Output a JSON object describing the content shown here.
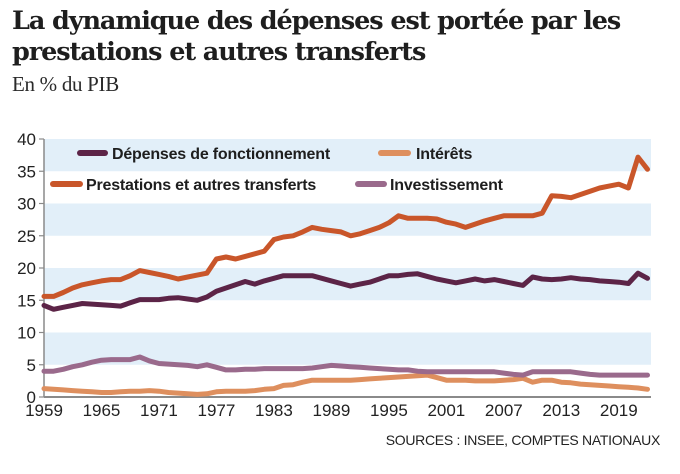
{
  "header": {
    "title": "La dynamique des dépenses est portée par les prestations et autres transferts",
    "subtitle": "En % du PIB"
  },
  "footer": {
    "source": "SOURCES : INSEE, COMPTES NATIONAUX"
  },
  "chart_data": {
    "type": "line",
    "title": "La dynamique des dépenses est portée par les prestations et autres transferts",
    "subtitle": "En % du PIB",
    "xlabel": "",
    "ylabel": "En % du PIB",
    "xlim": [
      1959,
      2022
    ],
    "ylim": [
      0,
      40
    ],
    "yticks": [
      0,
      5,
      10,
      15,
      20,
      25,
      30,
      35,
      40
    ],
    "xticks": [
      1959,
      1965,
      1971,
      1977,
      1983,
      1989,
      1995,
      2001,
      2007,
      2013,
      2019
    ],
    "grid": "alternating horizontal bands",
    "legend_position": "top",
    "colors": {
      "band": "#e2eff9",
      "axis": "#8a8a8a"
    },
    "x": [
      1959,
      1960,
      1961,
      1962,
      1963,
      1964,
      1965,
      1966,
      1967,
      1968,
      1969,
      1970,
      1971,
      1972,
      1973,
      1974,
      1975,
      1976,
      1977,
      1978,
      1979,
      1980,
      1981,
      1982,
      1983,
      1984,
      1985,
      1986,
      1987,
      1988,
      1989,
      1990,
      1991,
      1992,
      1993,
      1994,
      1995,
      1996,
      1997,
      1998,
      1999,
      2000,
      2001,
      2002,
      2003,
      2004,
      2005,
      2006,
      2007,
      2008,
      2009,
      2010,
      2011,
      2012,
      2013,
      2014,
      2015,
      2016,
      2017,
      2018,
      2019,
      2020,
      2021,
      2022
    ],
    "series": [
      {
        "name": "Dépenses de fonctionnement",
        "color": "#5c2447",
        "values": [
          14.2,
          13.6,
          13.9,
          14.2,
          14.5,
          14.4,
          14.3,
          14.2,
          14.1,
          14.6,
          15.1,
          15.1,
          15.1,
          15.3,
          15.4,
          15.2,
          15.0,
          15.5,
          16.4,
          16.9,
          17.4,
          17.9,
          17.5,
          18.0,
          18.4,
          18.8,
          18.8,
          18.8,
          18.8,
          18.4,
          18.0,
          17.6,
          17.2,
          17.5,
          17.8,
          18.3,
          18.8,
          18.8,
          19.0,
          19.1,
          18.7,
          18.3,
          18.0,
          17.7,
          18.0,
          18.3,
          18.0,
          18.2,
          17.9,
          17.6,
          17.3,
          18.6,
          18.3,
          18.2,
          18.3,
          18.5,
          18.3,
          18.2,
          18.0,
          17.9,
          17.8,
          17.6,
          19.2,
          18.4
        ]
      },
      {
        "name": "Intérêts",
        "color": "#de8f5e",
        "values": [
          1.3,
          1.2,
          1.1,
          1.0,
          0.9,
          0.8,
          0.7,
          0.7,
          0.8,
          0.9,
          0.9,
          1.0,
          0.9,
          0.7,
          0.6,
          0.5,
          0.4,
          0.5,
          0.8,
          0.9,
          0.9,
          0.9,
          1.0,
          1.2,
          1.3,
          1.8,
          1.9,
          2.3,
          2.6,
          2.6,
          2.6,
          2.6,
          2.6,
          2.7,
          2.8,
          2.9,
          3.0,
          3.1,
          3.2,
          3.3,
          3.4,
          3.0,
          2.6,
          2.6,
          2.6,
          2.5,
          2.5,
          2.5,
          2.6,
          2.7,
          2.9,
          2.3,
          2.6,
          2.6,
          2.3,
          2.2,
          2.0,
          1.9,
          1.8,
          1.7,
          1.6,
          1.5,
          1.4,
          1.2
        ]
      },
      {
        "name": "Prestations et autres transferts",
        "color": "#c9562a",
        "values": [
          15.6,
          15.6,
          16.2,
          16.9,
          17.4,
          17.7,
          18.0,
          18.2,
          18.2,
          18.8,
          19.6,
          19.3,
          19.0,
          18.7,
          18.3,
          18.6,
          18.9,
          19.2,
          21.4,
          21.7,
          21.4,
          21.8,
          22.2,
          22.6,
          24.4,
          24.8,
          25.0,
          25.6,
          26.3,
          26.0,
          25.8,
          25.6,
          25.0,
          25.3,
          25.8,
          26.3,
          27.0,
          28.1,
          27.7,
          27.7,
          27.7,
          27.6,
          27.1,
          26.8,
          26.3,
          26.8,
          27.3,
          27.7,
          28.1,
          28.1,
          28.1,
          28.1,
          28.5,
          31.2,
          31.1,
          30.9,
          31.4,
          31.9,
          32.4,
          32.7,
          33.0,
          32.4,
          37.2,
          35.3
        ]
      },
      {
        "name": "Investissement",
        "color": "#9a6a8c",
        "values": [
          4.0,
          4.0,
          4.3,
          4.7,
          5.0,
          5.4,
          5.7,
          5.8,
          5.8,
          5.8,
          6.2,
          5.6,
          5.2,
          5.1,
          5.0,
          4.9,
          4.7,
          5.0,
          4.6,
          4.2,
          4.2,
          4.3,
          4.3,
          4.4,
          4.4,
          4.4,
          4.4,
          4.4,
          4.5,
          4.7,
          4.9,
          4.8,
          4.7,
          4.6,
          4.5,
          4.4,
          4.3,
          4.2,
          4.2,
          4.0,
          3.9,
          3.9,
          3.9,
          3.9,
          3.9,
          3.9,
          3.9,
          3.9,
          3.7,
          3.5,
          3.4,
          3.9,
          3.9,
          3.9,
          3.9,
          3.9,
          3.7,
          3.5,
          3.4,
          3.4,
          3.4,
          3.4,
          3.4,
          3.4
        ]
      }
    ],
    "legend": [
      {
        "label": "Dépenses de fonctionnement",
        "series": 0
      },
      {
        "label": "Intérêts",
        "series": 1
      },
      {
        "label": "Prestations et autres transferts",
        "series": 2
      },
      {
        "label": "Investissement",
        "series": 3
      }
    ]
  }
}
